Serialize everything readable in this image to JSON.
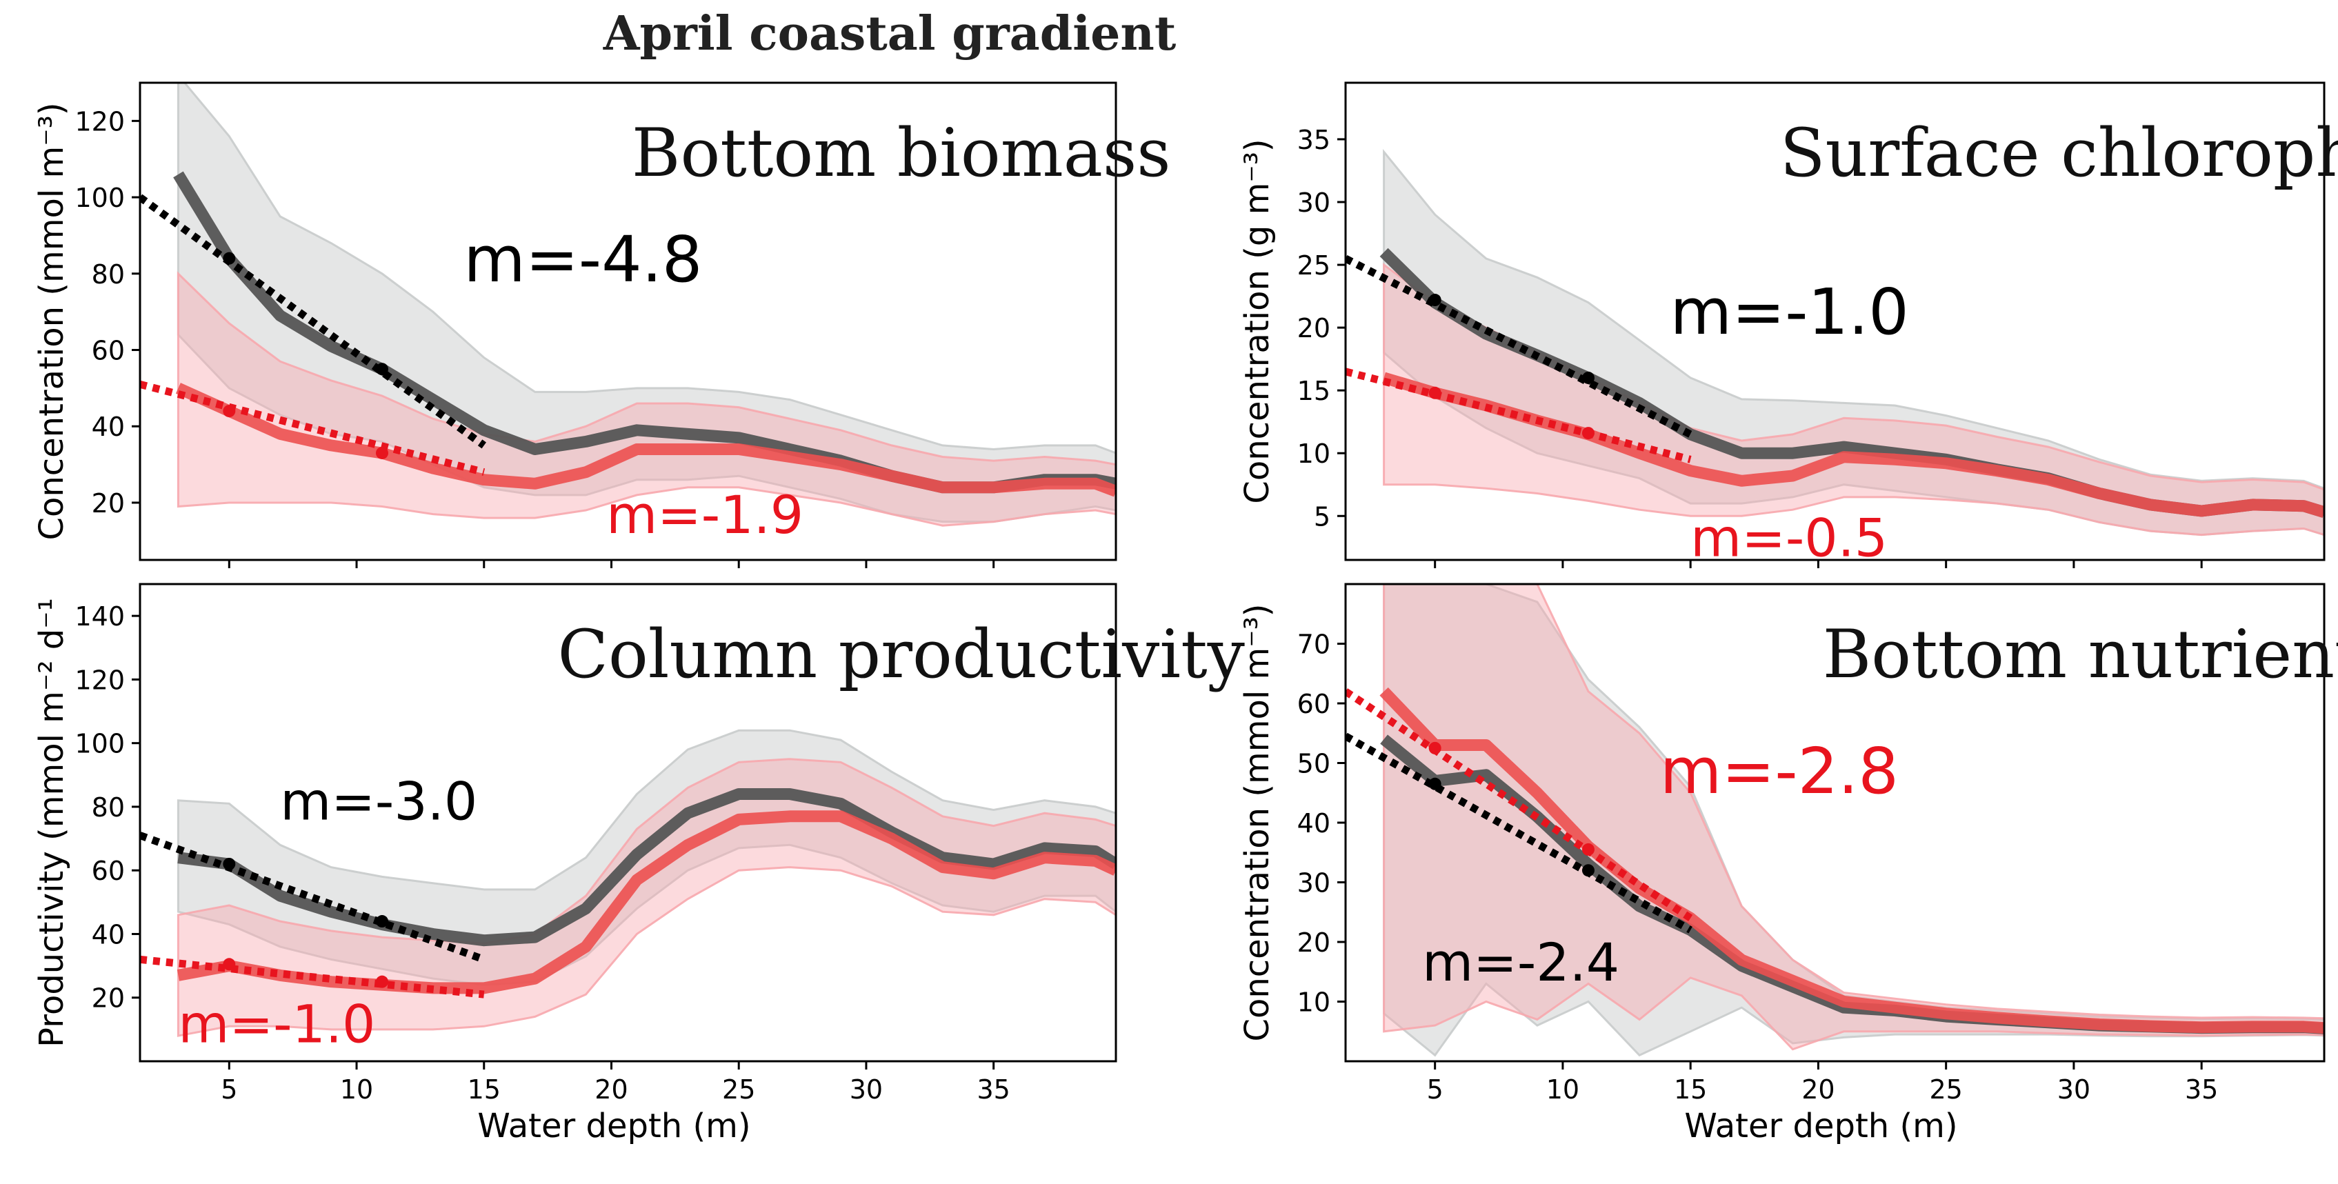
{
  "figure_title": "April coastal gradient",
  "colors": {
    "black_series": "#555555",
    "red_series": "#ec5050",
    "black_band": "#c8cbcb",
    "red_band": "#f7a7ad",
    "black_fit": "#000000",
    "red_fit": "#e8141e",
    "black_label": "#000000",
    "red_label": "#e8141e"
  },
  "chart_data": [
    {
      "type": "line",
      "title": "Bottom biomass",
      "xlabel": "",
      "ylabel": "Concentration (mmol m⁻³)",
      "xlim": [
        1.5,
        39.8
      ],
      "ylim": [
        5,
        130
      ],
      "xticks": [
        5,
        10,
        15,
        20,
        25,
        30,
        35
      ],
      "xtick_labels": [],
      "yticks": [
        20,
        40,
        60,
        80,
        100,
        120
      ],
      "ytick_labels": [
        "20",
        "40",
        "60",
        "80",
        "100",
        "120"
      ],
      "x": [
        3,
        5,
        7,
        9,
        11,
        13,
        15,
        17,
        19,
        21,
        23,
        25,
        27,
        29,
        31,
        33,
        35,
        37,
        39,
        39.8
      ],
      "series": [
        {
          "key": "black",
          "values": [
            106,
            84,
            69,
            61,
            55,
            47,
            39,
            34,
            36,
            39,
            38,
            37,
            34,
            31,
            27,
            24,
            24,
            26,
            26,
            25
          ],
          "band_low": [
            64,
            50,
            43,
            38,
            36,
            30,
            24,
            22,
            22,
            26,
            26,
            27,
            24,
            21,
            17,
            15,
            15,
            17,
            19,
            18
          ],
          "band_high": [
            132,
            116,
            95,
            88,
            80,
            70,
            58,
            49,
            49,
            50,
            50,
            49,
            47,
            43,
            39,
            35,
            34,
            35,
            35,
            33
          ]
        },
        {
          "key": "red",
          "values": [
            50,
            44,
            38,
            35,
            33,
            29,
            26,
            25,
            28,
            34,
            34,
            34,
            32,
            30,
            27,
            24,
            24,
            25,
            25,
            23
          ],
          "band_low": [
            19,
            20,
            20,
            20,
            19,
            17,
            16,
            16,
            18,
            22,
            24,
            24,
            22,
            20,
            17,
            14,
            15,
            17,
            18,
            17
          ],
          "band_high": [
            80,
            67,
            57,
            52,
            48,
            42,
            38,
            36,
            40,
            46,
            46,
            45,
            42,
            39,
            35,
            32,
            31,
            32,
            31,
            30
          ]
        }
      ],
      "fits": [
        {
          "key": "black",
          "x": [
            1.5,
            15
          ],
          "y": [
            100,
            35
          ],
          "marker_x": [
            5,
            11
          ],
          "marker_y": [
            84,
            55
          ]
        },
        {
          "key": "red",
          "x": [
            1.5,
            15
          ],
          "y": [
            51,
            28
          ],
          "marker_x": [
            5,
            11
          ],
          "marker_y": [
            44,
            33
          ]
        }
      ],
      "annotations": [
        {
          "key": "black",
          "text": "m=-4.8",
          "x": 14.2,
          "y": 78,
          "size": "large"
        },
        {
          "key": "red",
          "text": "m=-1.9",
          "x": 19.8,
          "y": 12,
          "size": "medium"
        }
      ]
    },
    {
      "type": "line",
      "title": "Surface chlorophyll",
      "xlabel": "",
      "ylabel": "Concentration (g m⁻³)",
      "xlim": [
        1.5,
        39.8
      ],
      "ylim": [
        1.5,
        39.5
      ],
      "xticks": [
        5,
        10,
        15,
        20,
        25,
        30,
        35
      ],
      "xtick_labels": [],
      "yticks": [
        5,
        10,
        15,
        20,
        25,
        30,
        35
      ],
      "ytick_labels": [
        "5",
        "10",
        "15",
        "20",
        "25",
        "30",
        "35"
      ],
      "x": [
        3,
        5,
        7,
        9,
        11,
        13,
        15,
        17,
        19,
        21,
        23,
        25,
        27,
        29,
        31,
        33,
        35,
        37,
        39,
        39.8
      ],
      "series": [
        {
          "key": "black",
          "values": [
            26,
            22,
            19.5,
            17.8,
            16,
            14,
            11.5,
            10,
            10,
            10.5,
            10,
            9.5,
            8.7,
            8,
            6.8,
            5.9,
            5.4,
            5.9,
            5.8,
            5.3
          ],
          "band_low": [
            18,
            14.5,
            12,
            10,
            9,
            8,
            6,
            6,
            6.5,
            7.5,
            7,
            6.5,
            6,
            5.5,
            4.5,
            3.8,
            3.5,
            3.8,
            4,
            3.5
          ],
          "band_high": [
            34,
            29,
            25.5,
            24,
            22,
            19,
            16,
            14.3,
            14.2,
            14,
            13.8,
            13,
            12,
            11,
            9.5,
            8.3,
            7.8,
            8,
            7.8,
            7.2
          ]
        },
        {
          "key": "red",
          "values": [
            16,
            14.8,
            13.8,
            12.6,
            11.5,
            10,
            8.6,
            7.8,
            8.2,
            9.7,
            9.5,
            9.2,
            8.6,
            7.9,
            6.8,
            5.9,
            5.4,
            5.9,
            5.8,
            5.3
          ],
          "band_low": [
            7.5,
            7.5,
            7.2,
            6.8,
            6.2,
            5.5,
            5,
            5,
            5.5,
            6.5,
            6.5,
            6.3,
            6,
            5.5,
            4.5,
            3.8,
            3.5,
            3.8,
            4,
            3.5
          ],
          "band_high": [
            25,
            22,
            20,
            18,
            16,
            14,
            12,
            11,
            11.5,
            12.8,
            12.6,
            12.2,
            11.3,
            10.5,
            9.3,
            8.2,
            7.7,
            7.9,
            7.7,
            7.1
          ]
        }
      ],
      "fits": [
        {
          "key": "black",
          "x": [
            1.5,
            15
          ],
          "y": [
            25.5,
            11.5
          ],
          "marker_x": [
            5,
            11
          ],
          "marker_y": [
            22.2,
            16
          ]
        },
        {
          "key": "red",
          "x": [
            1.5,
            15
          ],
          "y": [
            16.5,
            9.5
          ],
          "marker_x": [
            5,
            11
          ],
          "marker_y": [
            14.8,
            11.6
          ]
        }
      ],
      "annotations": [
        {
          "key": "black",
          "text": "m=-1.0",
          "x": 14.2,
          "y": 19.5,
          "size": "large"
        },
        {
          "key": "red",
          "text": "m=-0.5",
          "x": 15,
          "y": 1.8,
          "size": "medium"
        }
      ]
    },
    {
      "type": "line",
      "title": "Column productivity",
      "xlabel": "Water depth (m)",
      "ylabel": "Productivity (mmol m⁻² d⁻¹",
      "xlim": [
        1.5,
        39.8
      ],
      "ylim": [
        0,
        150
      ],
      "xticks": [
        5,
        10,
        15,
        20,
        25,
        30,
        35
      ],
      "xtick_labels": [
        "5",
        "10",
        "15",
        "20",
        "25",
        "30",
        "35"
      ],
      "yticks": [
        20,
        40,
        60,
        80,
        100,
        120,
        140
      ],
      "ytick_labels": [
        "20",
        "40",
        "60",
        "80",
        "100",
        "120",
        "140"
      ],
      "x": [
        3,
        5,
        7,
        9,
        11,
        13,
        15,
        17,
        19,
        21,
        23,
        25,
        27,
        29,
        31,
        33,
        35,
        37,
        39,
        39.8
      ],
      "series": [
        {
          "key": "black",
          "values": [
            64,
            62,
            52,
            47,
            43,
            40,
            38,
            39,
            48,
            65,
            78,
            84,
            84,
            81,
            72,
            64,
            62,
            67,
            66,
            62
          ],
          "band_low": [
            47,
            43,
            36,
            32,
            29,
            26,
            24,
            25,
            33,
            48,
            60,
            67,
            68,
            64,
            56,
            49,
            47,
            52,
            52,
            47
          ],
          "band_high": [
            82,
            81,
            68,
            61,
            58,
            56,
            54,
            54,
            64,
            84,
            98,
            104,
            104,
            101,
            91,
            82,
            79,
            82,
            80,
            78
          ]
        },
        {
          "key": "red",
          "values": [
            27,
            30,
            27,
            25,
            24,
            23,
            23,
            26,
            36,
            57,
            68,
            76,
            77,
            77,
            70,
            61,
            59,
            64,
            63,
            60
          ],
          "band_low": [
            8,
            11,
            11,
            10,
            10,
            10,
            11,
            14,
            21,
            40,
            51,
            60,
            61,
            60,
            55,
            47,
            46,
            51,
            50,
            46
          ],
          "band_high": [
            46,
            49,
            44,
            41,
            39,
            38,
            37,
            40,
            52,
            73,
            86,
            94,
            95,
            94,
            86,
            77,
            74,
            78,
            76,
            74
          ]
        }
      ],
      "fits": [
        {
          "key": "black",
          "x": [
            1.5,
            15
          ],
          "y": [
            71,
            32
          ],
          "marker_x": [
            5,
            11
          ],
          "marker_y": [
            62,
            44
          ]
        },
        {
          "key": "red",
          "x": [
            1.5,
            15
          ],
          "y": [
            32,
            21
          ],
          "marker_x": [
            5,
            11
          ],
          "marker_y": [
            30.5,
            25
          ]
        },
        {
          "key": "none",
          "x": [],
          "y": [],
          "marker_x": [],
          "marker_y": []
        }
      ],
      "annotations": [
        {
          "key": "black",
          "text": "m=-3.0",
          "x": 7,
          "y": 76,
          "size": "medium"
        },
        {
          "key": "red",
          "text": "m=-1.0",
          "x": 3,
          "y": 6,
          "size": "medium"
        }
      ]
    },
    {
      "type": "line",
      "title": "Bottom nutrients",
      "xlabel": "Water depth (m)",
      "ylabel": "Concentration (mmol m⁻³)",
      "xlim": [
        1.5,
        39.8
      ],
      "ylim": [
        0,
        80
      ],
      "xticks": [
        5,
        10,
        15,
        20,
        25,
        30,
        35
      ],
      "xtick_labels": [
        "5",
        "10",
        "15",
        "20",
        "25",
        "30",
        "35"
      ],
      "yticks": [
        10,
        20,
        30,
        40,
        50,
        60,
        70
      ],
      "ytick_labels": [
        "10",
        "20",
        "30",
        "40",
        "50",
        "60",
        "70"
      ],
      "x": [
        3,
        5,
        7,
        9,
        11,
        13,
        15,
        17,
        19,
        21,
        23,
        25,
        27,
        29,
        31,
        33,
        35,
        37,
        39,
        39.8
      ],
      "series": [
        {
          "key": "black",
          "values": [
            54,
            47,
            48,
            41,
            33,
            26,
            22,
            16,
            12.5,
            9,
            8.5,
            7.5,
            7,
            6.5,
            6,
            5.8,
            5.6,
            5.7,
            5.7,
            5.5
          ],
          "band_low": [
            8,
            1,
            13,
            6,
            10,
            1,
            5,
            9,
            3,
            4,
            4.5,
            4.5,
            4.5,
            4.5,
            4.3,
            4.2,
            4.2,
            4.3,
            4.4,
            4.3
          ],
          "band_high": [
            80,
            80,
            80,
            77,
            64,
            56,
            46,
            26,
            17,
            11,
            10,
            9,
            8.5,
            8,
            7.5,
            7.3,
            7.1,
            7.2,
            7.1,
            7
          ]
        },
        {
          "key": "red",
          "values": [
            62,
            53,
            53,
            45,
            36,
            29,
            24,
            17,
            13.5,
            10,
            9,
            8,
            7.3,
            6.7,
            6.2,
            5.9,
            5.7,
            5.8,
            5.8,
            5.6
          ],
          "band_low": [
            5,
            6,
            10,
            7,
            13,
            7,
            14,
            11,
            2,
            5,
            5,
            5,
            5,
            4.7,
            4.5,
            4.4,
            4.3,
            4.4,
            4.5,
            4.4
          ],
          "band_high": [
            80,
            80,
            80,
            80,
            62,
            55,
            45,
            26,
            17,
            11.5,
            10.5,
            9.5,
            8.8,
            8.3,
            7.8,
            7.5,
            7.3,
            7.4,
            7.3,
            7.2
          ]
        }
      ],
      "fits": [
        {
          "key": "black",
          "x": [
            1.5,
            15
          ],
          "y": [
            54.5,
            22
          ],
          "marker_x": [
            5,
            11
          ],
          "marker_y": [
            46.5,
            32
          ]
        },
        {
          "key": "red",
          "x": [
            1.5,
            15
          ],
          "y": [
            62,
            24
          ],
          "marker_x": [
            5,
            11
          ],
          "marker_y": [
            52.5,
            35.5
          ]
        }
      ],
      "annotations": [
        {
          "key": "red",
          "text": "m=-2.8",
          "x": 13.8,
          "y": 45,
          "size": "large"
        },
        {
          "key": "black",
          "text": "m=-2.4",
          "x": 4.5,
          "y": 13.5,
          "size": "medium"
        }
      ]
    }
  ]
}
